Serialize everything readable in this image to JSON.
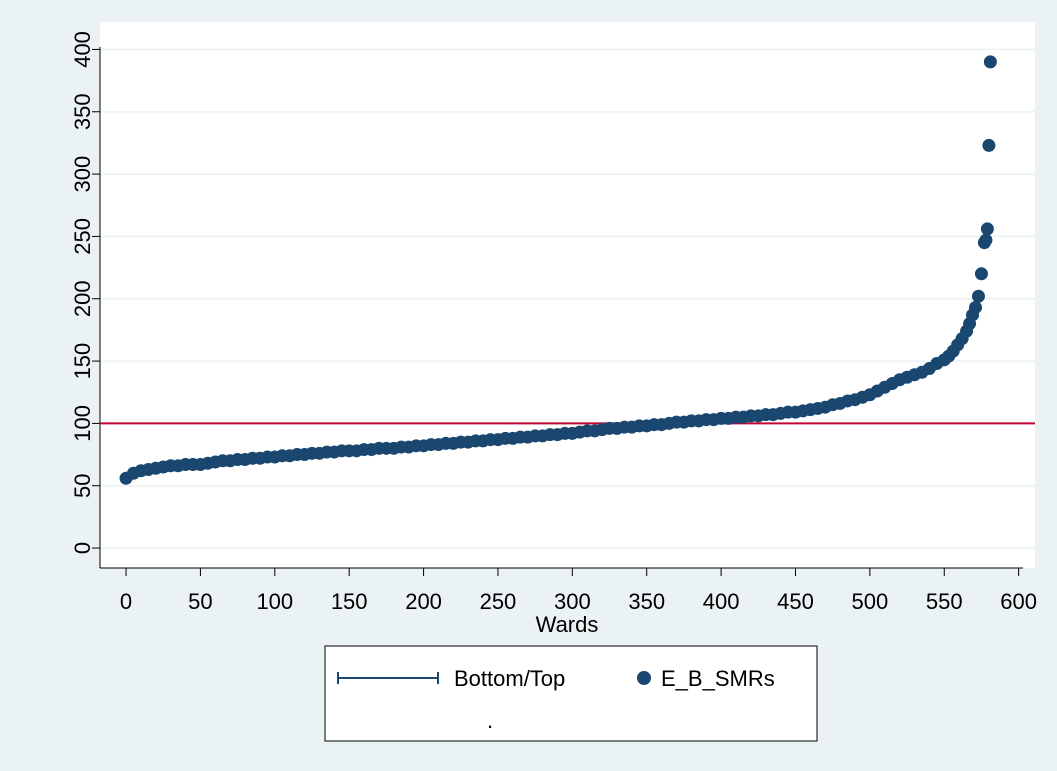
{
  "chart_data": {
    "type": "scatter",
    "x_label": "Wards",
    "xlim": [
      -17.5,
      611
    ],
    "ylim": [
      -16,
      422
    ],
    "xticks": [
      0,
      50,
      100,
      150,
      200,
      250,
      300,
      350,
      400,
      450,
      500,
      550,
      600
    ],
    "yticks": [
      0,
      50,
      100,
      150,
      200,
      250,
      300,
      350,
      400
    ],
    "grid": true,
    "legend_position": "bottom",
    "legend_note": ".",
    "series": [
      {
        "name": "Bottom/Top",
        "type": "hline",
        "color": "#c10534",
        "legend_color": "#1a476f",
        "values": [
          100
        ]
      },
      {
        "name": "E_B_SMRs",
        "type": "scatter",
        "color": "#1a476f",
        "x": [
          0,
          5,
          10,
          15,
          20,
          25,
          30,
          35,
          40,
          45,
          50,
          55,
          60,
          65,
          70,
          75,
          80,
          85,
          90,
          95,
          100,
          105,
          110,
          115,
          120,
          125,
          130,
          135,
          140,
          145,
          150,
          155,
          160,
          165,
          170,
          175,
          180,
          185,
          190,
          195,
          200,
          205,
          210,
          215,
          220,
          225,
          230,
          235,
          240,
          245,
          250,
          255,
          260,
          265,
          270,
          275,
          280,
          285,
          290,
          295,
          300,
          305,
          310,
          315,
          320,
          325,
          330,
          335,
          340,
          345,
          350,
          355,
          360,
          365,
          370,
          375,
          380,
          385,
          390,
          395,
          400,
          405,
          410,
          415,
          420,
          425,
          430,
          435,
          440,
          445,
          450,
          455,
          460,
          465,
          470,
          475,
          480,
          485,
          490,
          495,
          500,
          505,
          510,
          515,
          520,
          525,
          530,
          535,
          540,
          545,
          550,
          553,
          556,
          559,
          562,
          565,
          567,
          569,
          571,
          573,
          575,
          577,
          578,
          579,
          580,
          581
        ],
        "values": [
          56,
          60,
          62,
          63,
          64,
          65,
          66,
          66,
          67,
          67,
          67,
          68,
          69,
          70,
          70,
          71,
          71,
          72,
          72,
          73,
          73,
          74,
          74,
          75,
          75,
          76,
          76,
          77,
          77,
          78,
          78,
          78,
          79,
          79,
          80,
          80,
          80,
          81,
          81,
          82,
          82,
          83,
          83,
          84,
          84,
          85,
          85,
          86,
          86,
          87,
          87,
          88,
          88,
          89,
          89,
          90,
          90,
          91,
          91,
          92,
          92,
          93,
          94,
          94,
          95,
          96,
          96,
          97,
          97,
          98,
          98,
          99,
          99,
          100,
          101,
          101,
          102,
          102,
          103,
          103,
          104,
          104,
          105,
          105,
          106,
          106,
          107,
          107,
          108,
          109,
          109,
          110,
          111,
          112,
          113,
          115,
          116,
          118,
          119,
          121,
          123,
          126,
          129,
          132,
          135,
          137,
          139,
          141,
          144,
          148,
          151,
          154,
          158,
          163,
          168,
          174,
          180,
          187,
          193,
          202,
          220,
          245,
          247,
          256,
          323,
          390
        ]
      }
    ]
  }
}
